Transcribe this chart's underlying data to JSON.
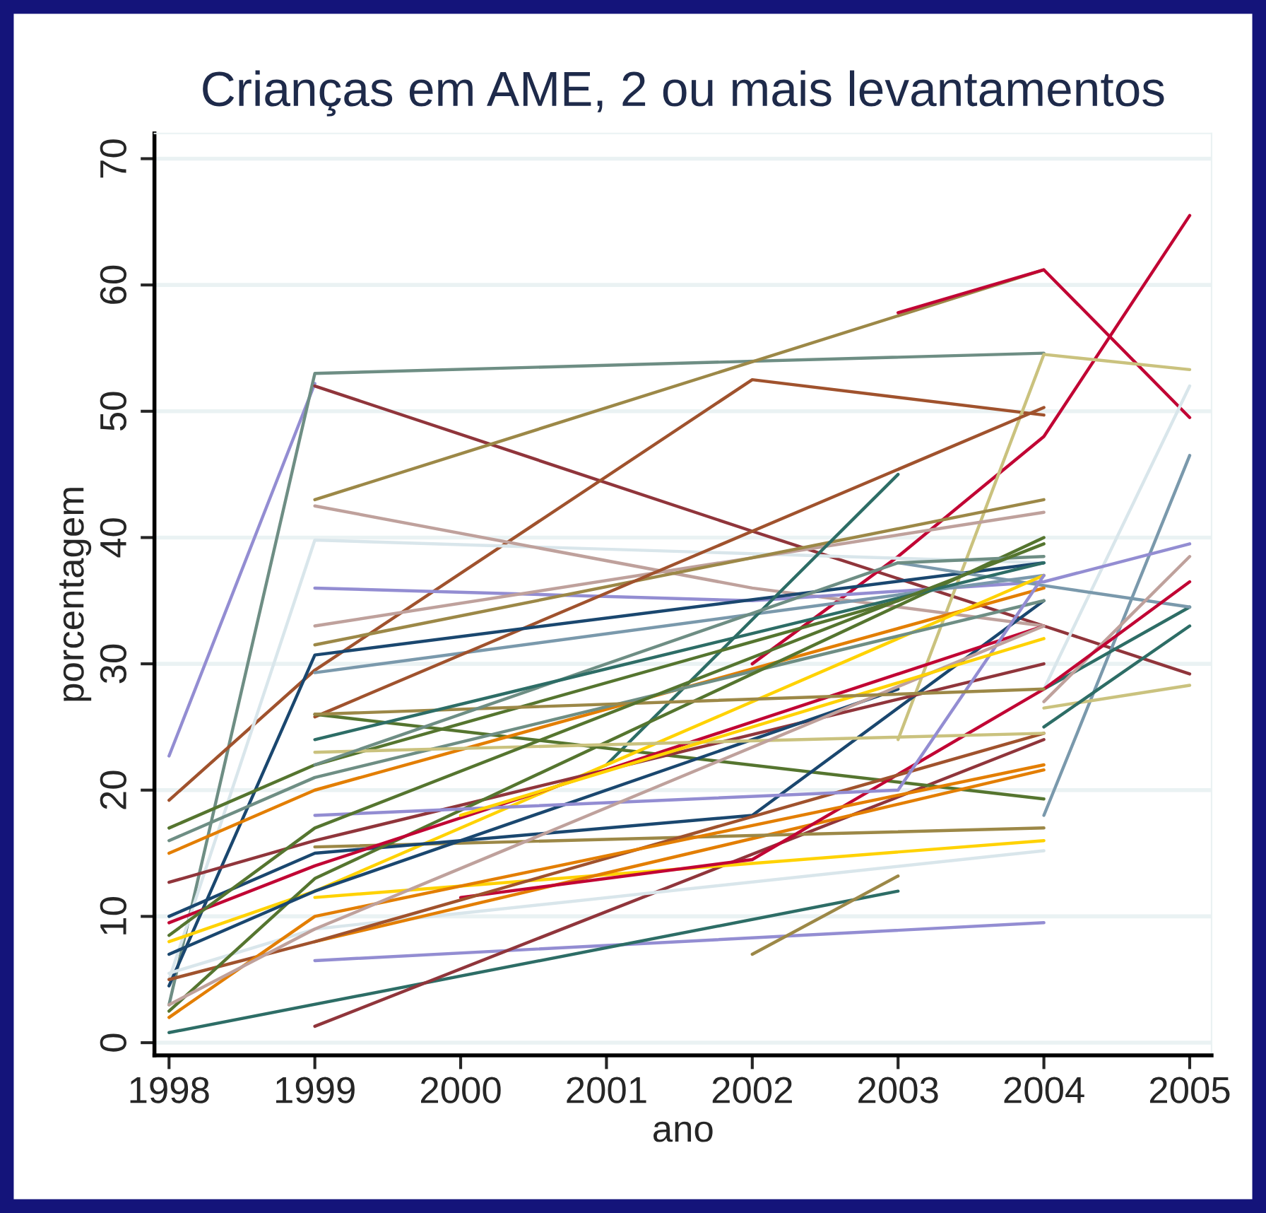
{
  "chart_data": {
    "type": "line",
    "title": "Crianças em AME, 2 ou mais levantamentos",
    "xlabel": "ano",
    "ylabel": "porcentagem",
    "xlim": [
      1997.9,
      2005.15
    ],
    "xticks": [
      1998,
      1999,
      2000,
      2001,
      2002,
      2003,
      2004,
      2005
    ],
    "ylim": [
      -1,
      72
    ],
    "yticks": [
      0,
      10,
      20,
      30,
      40,
      50,
      60,
      70
    ],
    "grid": "y",
    "legend": false,
    "line_style": "solid",
    "marker": "none",
    "series": [
      {
        "color": "#938dd2",
        "x": [
          1998,
          1999
        ],
        "values": [
          22.7,
          52.2
        ]
      },
      {
        "color": "#6e8e84",
        "x": [
          1998,
          1999,
          2004
        ],
        "values": [
          3,
          53,
          54.6
        ]
      },
      {
        "color": "#90353b",
        "x": [
          1999,
          2002,
          2004,
          2005
        ],
        "values": [
          52,
          40.5,
          33,
          29.2
        ]
      },
      {
        "color": "#9c8847",
        "x": [
          1999,
          2004
        ],
        "values": [
          43,
          61.2
        ]
      },
      {
        "color": "#c10534",
        "x": [
          2003,
          2004,
          2005
        ],
        "values": [
          57.8,
          61.2,
          49.5
        ]
      },
      {
        "color": "#c10534",
        "x": [
          2002,
          2003,
          2004,
          2005
        ],
        "values": [
          30,
          38.5,
          48,
          65.5
        ]
      },
      {
        "color": "#a0522d",
        "x": [
          1998,
          1999,
          2002,
          2004
        ],
        "values": [
          19.2,
          29.5,
          52.5,
          49.7
        ]
      },
      {
        "color": "#cac27e",
        "x": [
          2003,
          2004,
          2005
        ],
        "values": [
          24,
          54.5,
          53.3
        ]
      },
      {
        "color": "#d9e6eb",
        "x": [
          1998,
          1999,
          2004
        ],
        "values": [
          5,
          39.8,
          38
        ]
      },
      {
        "color": "#d9e6eb",
        "x": [
          2004,
          2005
        ],
        "values": [
          28,
          52
        ]
      },
      {
        "color": "#7a99ac",
        "x": [
          2004,
          2005
        ],
        "values": [
          18,
          46.5
        ]
      },
      {
        "color": "#bfa19c",
        "x": [
          1999,
          2002,
          2004
        ],
        "values": [
          42.5,
          36,
          33
        ]
      },
      {
        "color": "#938dd2",
        "x": [
          1999,
          2002,
          2004,
          2005
        ],
        "values": [
          36,
          35,
          36.5,
          39.5
        ]
      },
      {
        "color": "#bfa19c",
        "x": [
          1999,
          2004
        ],
        "values": [
          33,
          42
        ]
      },
      {
        "color": "#9c8847",
        "x": [
          1999,
          2004
        ],
        "values": [
          31.5,
          43
        ]
      },
      {
        "color": "#7a99ac",
        "x": [
          1999,
          2004
        ],
        "values": [
          29.3,
          37
        ]
      },
      {
        "color": "#a0522d",
        "x": [
          1999,
          2004
        ],
        "values": [
          25.8,
          50.3
        ]
      },
      {
        "color": "#1a476f",
        "x": [
          1998,
          1999,
          2004
        ],
        "values": [
          4.5,
          30.7,
          38
        ]
      },
      {
        "color": "#2d6d66",
        "x": [
          2001,
          2003
        ],
        "values": [
          22,
          45
        ]
      },
      {
        "color": "#938dd2",
        "x": [
          1999,
          2004
        ],
        "values": [
          6.5,
          9.5
        ]
      },
      {
        "color": "#2d6d66",
        "x": [
          1998,
          2003
        ],
        "values": [
          0.8,
          12
        ]
      },
      {
        "color": "#90353b",
        "x": [
          1999,
          2004
        ],
        "values": [
          1.3,
          24
        ]
      },
      {
        "color": "#9c8847",
        "x": [
          2002,
          2003
        ],
        "values": [
          7,
          13.2
        ]
      },
      {
        "color": "#d9e6eb",
        "x": [
          1998,
          1999,
          2004
        ],
        "values": [
          5.5,
          9,
          15.2
        ]
      },
      {
        "color": "#cac27e",
        "x": [
          2004,
          2005
        ],
        "values": [
          26.5,
          28.3
        ]
      },
      {
        "color": "#2d6d66",
        "x": [
          2004,
          2005
        ],
        "values": [
          25,
          33
        ]
      },
      {
        "color": "#2d6d66",
        "x": [
          2004,
          2005
        ],
        "values": [
          28,
          34.5
        ]
      },
      {
        "color": "#7a99ac",
        "x": [
          2003,
          2004,
          2005
        ],
        "values": [
          38,
          36.2,
          34.5
        ]
      },
      {
        "color": "#bfa19c",
        "x": [
          2004,
          2005
        ],
        "values": [
          27,
          38.5
        ]
      },
      {
        "color": "#55752f",
        "x": [
          1999,
          2004
        ],
        "values": [
          26,
          19.3
        ]
      },
      {
        "color": "#ffd200",
        "x": [
          1999,
          2004
        ],
        "values": [
          11.5,
          16
        ]
      },
      {
        "color": "#e37e00",
        "x": [
          1999,
          2004
        ],
        "values": [
          8,
          21.6
        ]
      },
      {
        "color": "#9c8847",
        "x": [
          1999,
          2004
        ],
        "values": [
          15.5,
          17
        ]
      },
      {
        "color": "#c10534",
        "x": [
          2000,
          2002,
          2004,
          2005
        ],
        "values": [
          11.5,
          14.5,
          28,
          36.5
        ]
      },
      {
        "color": "#e37e00",
        "x": [
          1998,
          1999,
          2004
        ],
        "values": [
          15,
          20,
          36
        ]
      },
      {
        "color": "#55752f",
        "x": [
          1998,
          1999,
          2003
        ],
        "values": [
          17,
          22,
          35
        ]
      },
      {
        "color": "#ffd200",
        "x": [
          1998,
          1999,
          2004
        ],
        "values": [
          8,
          12,
          37
        ]
      },
      {
        "color": "#1a476f",
        "x": [
          1998,
          1999,
          2002,
          2004
        ],
        "values": [
          10,
          15,
          18,
          35
        ]
      },
      {
        "color": "#6e8e84",
        "x": [
          1998,
          1999,
          2004
        ],
        "values": [
          16,
          21,
          35
        ]
      },
      {
        "color": "#90353b",
        "x": [
          1998,
          1999,
          2004
        ],
        "values": [
          12.7,
          16,
          30
        ]
      },
      {
        "color": "#a0522d",
        "x": [
          1998,
          1999,
          2004
        ],
        "values": [
          5,
          8,
          24.5
        ]
      },
      {
        "color": "#e37e00",
        "x": [
          1998,
          1999,
          2004
        ],
        "values": [
          2,
          10,
          22
        ]
      },
      {
        "color": "#55752f",
        "x": [
          1998,
          1999,
          2004
        ],
        "values": [
          2.5,
          13,
          40
        ]
      },
      {
        "color": "#1a476f",
        "x": [
          1998,
          1999,
          2003
        ],
        "values": [
          7,
          12,
          28
        ]
      },
      {
        "color": "#c10534",
        "x": [
          1998,
          1999,
          2004
        ],
        "values": [
          9.5,
          14,
          33
        ]
      },
      {
        "color": "#cac27e",
        "x": [
          1999,
          2004
        ],
        "values": [
          23,
          24.5
        ]
      },
      {
        "color": "#938dd2",
        "x": [
          1999,
          2003,
          2004
        ],
        "values": [
          18,
          20,
          37
        ]
      },
      {
        "color": "#bfa19c",
        "x": [
          1998,
          1999,
          2004
        ],
        "values": [
          3,
          9,
          33
        ]
      },
      {
        "color": "#ffd200",
        "x": [
          2000,
          2004
        ],
        "values": [
          18,
          32
        ]
      },
      {
        "color": "#9c8847",
        "x": [
          1999,
          2004
        ],
        "values": [
          26,
          28
        ]
      },
      {
        "color": "#6e8e84",
        "x": [
          1999,
          2003,
          2004
        ],
        "values": [
          22,
          38,
          38.5
        ]
      },
      {
        "color": "#2d6d66",
        "x": [
          1999,
          2004
        ],
        "values": [
          24,
          38
        ]
      },
      {
        "color": "#55752f",
        "x": [
          1998,
          1999,
          2004
        ],
        "values": [
          8.5,
          17,
          39.5
        ]
      }
    ]
  }
}
